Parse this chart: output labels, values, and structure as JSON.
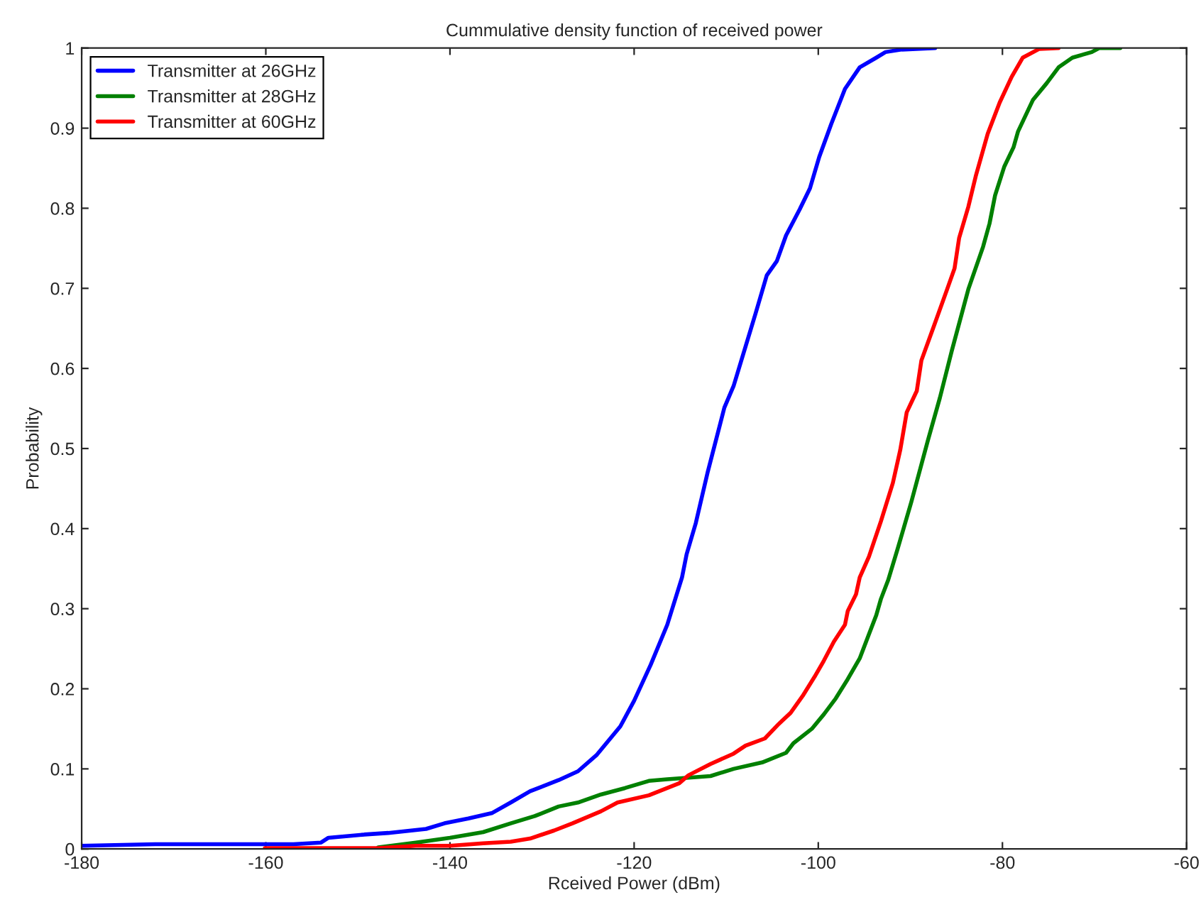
{
  "chart_data": {
    "type": "line",
    "title": "Cummulative density function of received power",
    "xlabel": "Rceived Power (dBm)",
    "ylabel": "Probability",
    "xlim": [
      -180,
      -60
    ],
    "xticks": [
      -180,
      -160,
      -140,
      -120,
      -100,
      -80,
      -60
    ],
    "ylim": [
      0,
      1
    ],
    "yticks": [
      0,
      0.1,
      0.2,
      0.3,
      0.4,
      0.5,
      0.6,
      0.7,
      0.8,
      0.9,
      1
    ],
    "grid": false,
    "legend": "top left",
    "line_style": "solid",
    "marker": "none",
    "series": [
      {
        "name": "Transmitter at 26GHz",
        "color": "#0000ff",
        "x": [
          -180,
          -172.0,
          -160.1,
          -157.0,
          -154.0,
          -153.2,
          -149.3,
          -146.7,
          -142.6,
          -140.6,
          -138.0,
          -135.4,
          -133.4,
          -131.3,
          -128.2,
          -126.1,
          -124.1,
          -121.5,
          -120.0,
          -118.2,
          -116.4,
          -114.8,
          -114.3,
          -113.3,
          -112.0,
          -110.2,
          -109.2,
          -106.8,
          -105.6,
          -104.5,
          -103.5,
          -102.0,
          -100.9,
          -99.9,
          -98.6,
          -97.1,
          -95.5,
          -93.7,
          -92.7,
          -91.1,
          -87.3
        ],
        "values": [
          0.004,
          0.006,
          0.006,
          0.006,
          0.008,
          0.014,
          0.018,
          0.02,
          0.025,
          0.032,
          0.038,
          0.045,
          0.058,
          0.072,
          0.086,
          0.097,
          0.117,
          0.153,
          0.185,
          0.23,
          0.28,
          0.339,
          0.368,
          0.407,
          0.471,
          0.551,
          0.578,
          0.669,
          0.716,
          0.734,
          0.766,
          0.799,
          0.825,
          0.864,
          0.905,
          0.949,
          0.976,
          0.988,
          0.995,
          0.998,
          1.0
        ]
      },
      {
        "name": "Transmitter at 28GHz",
        "color": "#008000",
        "x": [
          -147.8,
          -143.7,
          -140.0,
          -136.4,
          -133.4,
          -130.8,
          -128.2,
          -126.1,
          -123.6,
          -121.0,
          -118.4,
          -116.4,
          -111.7,
          -109.2,
          -106.1,
          -103.5,
          -102.7,
          -100.7,
          -99.4,
          -98.1,
          -96.8,
          -95.5,
          -94.5,
          -93.7,
          -93.2,
          -92.4,
          -91.4,
          -89.9,
          -88.1,
          -86.8,
          -85.5,
          -83.7,
          -82.1,
          -81.4,
          -80.8,
          -79.8,
          -78.8,
          -78.3,
          -76.7,
          -75.2,
          -73.9,
          -72.4,
          -70.3,
          -69.5,
          -67.2
        ],
        "values": [
          0.002,
          0.008,
          0.014,
          0.021,
          0.032,
          0.041,
          0.053,
          0.058,
          0.068,
          0.076,
          0.085,
          0.087,
          0.091,
          0.1,
          0.108,
          0.12,
          0.132,
          0.15,
          0.168,
          0.188,
          0.212,
          0.238,
          0.268,
          0.292,
          0.312,
          0.336,
          0.374,
          0.433,
          0.51,
          0.563,
          0.622,
          0.699,
          0.752,
          0.781,
          0.816,
          0.852,
          0.876,
          0.896,
          0.935,
          0.956,
          0.976,
          0.988,
          0.995,
          1.0,
          1.0
        ]
      },
      {
        "name": "Transmitter at 60GHz",
        "color": "#ff0000",
        "x": [
          -160.1,
          -147.8,
          -143.7,
          -140.0,
          -136.4,
          -133.4,
          -131.3,
          -128.7,
          -126.7,
          -123.6,
          -121.8,
          -118.4,
          -115.1,
          -114.1,
          -111.7,
          -109.2,
          -107.9,
          -105.8,
          -104.3,
          -103.0,
          -101.7,
          -100.4,
          -99.4,
          -98.3,
          -97.1,
          -96.8,
          -95.9,
          -95.5,
          -94.5,
          -93.2,
          -91.9,
          -91.1,
          -90.4,
          -89.3,
          -88.8,
          -87.5,
          -86.0,
          -85.2,
          -84.7,
          -83.7,
          -82.9,
          -81.6,
          -80.3,
          -79.0,
          -77.8,
          -76.0,
          -73.9
        ],
        "values": [
          0.001,
          0.001,
          0.004,
          0.004,
          0.007,
          0.009,
          0.013,
          0.023,
          0.032,
          0.047,
          0.058,
          0.067,
          0.082,
          0.092,
          0.106,
          0.119,
          0.129,
          0.138,
          0.156,
          0.17,
          0.191,
          0.215,
          0.235,
          0.259,
          0.28,
          0.297,
          0.318,
          0.339,
          0.365,
          0.409,
          0.457,
          0.498,
          0.545,
          0.572,
          0.61,
          0.651,
          0.699,
          0.725,
          0.763,
          0.802,
          0.84,
          0.893,
          0.932,
          0.964,
          0.988,
          0.999,
          1.0
        ]
      }
    ]
  }
}
